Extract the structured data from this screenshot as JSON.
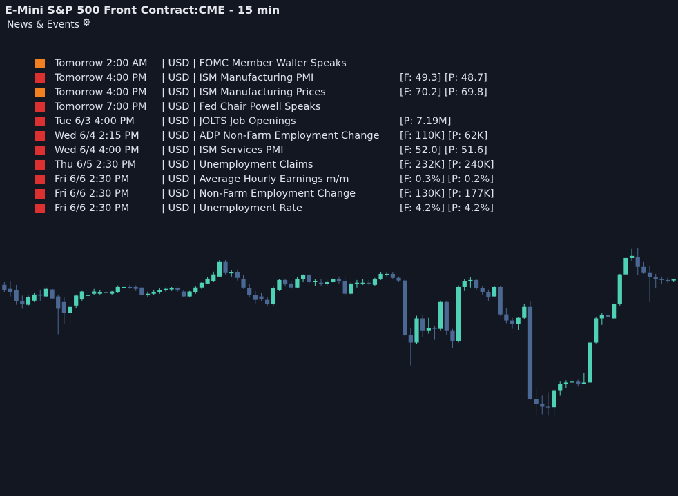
{
  "header": {
    "title": "E-Mini S&P 500 Front Contract:CME - 15 min",
    "subtitle": "News & Events",
    "settings_icon": "gear-icon"
  },
  "colors": {
    "background": "#131722",
    "bull": "#4ed1b4",
    "bear": "#4b6894",
    "impact_high": "#dd3131",
    "impact_medium": "#f38020"
  },
  "events": [
    {
      "color": "#f38020",
      "time": "Tomorrow 2:00 AM",
      "rest": "| USD | FOMC Member Waller Speaks",
      "vals": ""
    },
    {
      "color": "#dd3131",
      "time": "Tomorrow 4:00 PM",
      "rest": "| USD | ISM Manufacturing PMI",
      "vals": "[F: 49.3] [P: 48.7]"
    },
    {
      "color": "#f38020",
      "time": "Tomorrow 4:00 PM",
      "rest": "| USD | ISM Manufacturing Prices",
      "vals": "[F: 70.2] [P: 69.8]"
    },
    {
      "color": "#dd3131",
      "time": "Tomorrow 7:00 PM",
      "rest": "| USD | Fed Chair Powell Speaks",
      "vals": ""
    },
    {
      "color": "#dd3131",
      "time": "Tue 6/3 4:00 PM",
      "rest": "| USD | JOLTS Job Openings",
      "vals": "[P: 7.19M]"
    },
    {
      "color": "#dd3131",
      "time": "Wed 6/4 2:15 PM",
      "rest": "| USD | ADP Non-Farm Employment Change",
      "vals": "[F: 110K] [P: 62K]"
    },
    {
      "color": "#dd3131",
      "time": "Wed 6/4 4:00 PM",
      "rest": "| USD | ISM Services PMI",
      "vals": "[F: 52.0] [P: 51.6]"
    },
    {
      "color": "#dd3131",
      "time": "Thu 6/5 2:30 PM",
      "rest": "| USD | Unemployment Claims",
      "vals": "[F: 232K] [P: 240K]"
    },
    {
      "color": "#dd3131",
      "time": "Fri 6/6 2:30 PM",
      "rest": "| USD | Average Hourly Earnings m/m",
      "vals": "[F: 0.3%] [P: 0.2%]"
    },
    {
      "color": "#dd3131",
      "time": "Fri 6/6 2:30 PM",
      "rest": "| USD | Non-Farm Employment Change",
      "vals": "[F: 130K] [P: 177K]"
    },
    {
      "color": "#dd3131",
      "time": "Fri 6/6 2:30 PM",
      "rest": "| USD | Unemployment Rate",
      "vals": "[F: 4.2%] [P: 4.2%]"
    }
  ],
  "chart_data": {
    "type": "candlestick",
    "title": "E-Mini S&P 500 Front Contract:CME - 15 min",
    "interval": "15 min",
    "x_axis": "none",
    "y_axis": "none",
    "ylim": [
      0,
      100
    ],
    "candles": [
      {
        "o": 78.7,
        "h": 79.7,
        "l": 75.9,
        "c": 76.7
      },
      {
        "o": 77.2,
        "h": 80.0,
        "l": 74.4,
        "c": 75.9
      },
      {
        "o": 76.7,
        "h": 78.7,
        "l": 71.3,
        "c": 72.6
      },
      {
        "o": 72.6,
        "h": 74.7,
        "l": 69.8,
        "c": 71.5
      },
      {
        "o": 71.3,
        "h": 74.7,
        "l": 70.8,
        "c": 74.1
      },
      {
        "o": 72.8,
        "h": 75.6,
        "l": 72.3,
        "c": 75.1
      },
      {
        "o": 75.1,
        "h": 76.7,
        "l": 72.8,
        "c": 74.7
      },
      {
        "o": 74.4,
        "h": 77.7,
        "l": 74.1,
        "c": 77.2
      },
      {
        "o": 77.0,
        "h": 77.9,
        "l": 73.1,
        "c": 73.6
      },
      {
        "o": 74.4,
        "h": 75.1,
        "l": 60.3,
        "c": 69.8
      },
      {
        "o": 72.3,
        "h": 74.1,
        "l": 64.1,
        "c": 68.2
      },
      {
        "o": 68.2,
        "h": 71.8,
        "l": 63.6,
        "c": 70.5
      },
      {
        "o": 71.0,
        "h": 75.1,
        "l": 70.0,
        "c": 74.7
      },
      {
        "o": 73.3,
        "h": 76.4,
        "l": 72.8,
        "c": 76.2
      },
      {
        "o": 74.9,
        "h": 76.7,
        "l": 73.3,
        "c": 74.9
      },
      {
        "o": 75.4,
        "h": 77.2,
        "l": 74.9,
        "c": 76.2
      },
      {
        "o": 75.4,
        "h": 76.7,
        "l": 75.1,
        "c": 75.9
      },
      {
        "o": 75.9,
        "h": 76.4,
        "l": 75.1,
        "c": 75.6
      },
      {
        "o": 75.4,
        "h": 76.4,
        "l": 74.9,
        "c": 76.2
      },
      {
        "o": 75.9,
        "h": 78.5,
        "l": 75.6,
        "c": 77.9
      },
      {
        "o": 77.9,
        "h": 78.5,
        "l": 77.2,
        "c": 77.9
      },
      {
        "o": 77.9,
        "h": 78.7,
        "l": 77.2,
        "c": 77.7
      },
      {
        "o": 77.9,
        "h": 78.5,
        "l": 76.4,
        "c": 77.2
      },
      {
        "o": 77.7,
        "h": 77.9,
        "l": 74.4,
        "c": 74.9
      },
      {
        "o": 74.9,
        "h": 76.2,
        "l": 74.1,
        "c": 75.4
      },
      {
        "o": 75.4,
        "h": 76.7,
        "l": 74.9,
        "c": 75.9
      },
      {
        "o": 75.9,
        "h": 77.4,
        "l": 75.4,
        "c": 76.7
      },
      {
        "o": 76.7,
        "h": 77.7,
        "l": 76.2,
        "c": 77.2
      },
      {
        "o": 77.0,
        "h": 77.9,
        "l": 76.4,
        "c": 77.4
      },
      {
        "o": 77.4,
        "h": 77.7,
        "l": 76.2,
        "c": 76.9
      },
      {
        "o": 76.2,
        "h": 76.9,
        "l": 74.1,
        "c": 74.4
      },
      {
        "o": 74.4,
        "h": 76.4,
        "l": 74.1,
        "c": 76.2
      },
      {
        "o": 75.9,
        "h": 78.2,
        "l": 75.4,
        "c": 77.7
      },
      {
        "o": 77.7,
        "h": 79.7,
        "l": 77.2,
        "c": 79.5
      },
      {
        "o": 79.2,
        "h": 81.5,
        "l": 79.0,
        "c": 81.0
      },
      {
        "o": 80.0,
        "h": 83.6,
        "l": 79.7,
        "c": 82.6
      },
      {
        "o": 81.8,
        "h": 87.9,
        "l": 81.5,
        "c": 87.2
      },
      {
        "o": 87.2,
        "h": 87.9,
        "l": 82.6,
        "c": 83.1
      },
      {
        "o": 83.1,
        "h": 84.1,
        "l": 81.8,
        "c": 83.3
      },
      {
        "o": 83.3,
        "h": 84.4,
        "l": 80.3,
        "c": 81.3
      },
      {
        "o": 80.8,
        "h": 82.3,
        "l": 77.2,
        "c": 77.7
      },
      {
        "o": 77.4,
        "h": 79.0,
        "l": 74.1,
        "c": 74.9
      },
      {
        "o": 74.9,
        "h": 76.4,
        "l": 71.8,
        "c": 73.1
      },
      {
        "o": 74.4,
        "h": 75.6,
        "l": 72.8,
        "c": 73.3
      },
      {
        "o": 73.1,
        "h": 74.1,
        "l": 71.0,
        "c": 71.5
      },
      {
        "o": 71.5,
        "h": 78.2,
        "l": 71.0,
        "c": 77.4
      },
      {
        "o": 76.7,
        "h": 80.8,
        "l": 76.4,
        "c": 80.5
      },
      {
        "o": 80.5,
        "h": 81.0,
        "l": 78.2,
        "c": 79.0
      },
      {
        "o": 79.2,
        "h": 80.0,
        "l": 77.2,
        "c": 77.7
      },
      {
        "o": 77.7,
        "h": 81.5,
        "l": 77.4,
        "c": 80.8
      },
      {
        "o": 80.8,
        "h": 82.6,
        "l": 79.7,
        "c": 82.3
      },
      {
        "o": 82.3,
        "h": 82.8,
        "l": 79.2,
        "c": 79.7
      },
      {
        "o": 79.7,
        "h": 80.8,
        "l": 78.2,
        "c": 80.0
      },
      {
        "o": 79.5,
        "h": 81.0,
        "l": 78.2,
        "c": 79.0
      },
      {
        "o": 79.0,
        "h": 80.3,
        "l": 78.5,
        "c": 79.7
      },
      {
        "o": 79.7,
        "h": 81.3,
        "l": 79.5,
        "c": 80.8
      },
      {
        "o": 80.8,
        "h": 81.8,
        "l": 79.2,
        "c": 80.0
      },
      {
        "o": 80.0,
        "h": 81.5,
        "l": 74.6,
        "c": 75.4
      },
      {
        "o": 75.4,
        "h": 79.7,
        "l": 74.9,
        "c": 79.2
      },
      {
        "o": 79.2,
        "h": 80.5,
        "l": 77.7,
        "c": 79.5
      },
      {
        "o": 79.2,
        "h": 80.8,
        "l": 78.7,
        "c": 79.5
      },
      {
        "o": 79.5,
        "h": 80.5,
        "l": 78.5,
        "c": 79.2
      },
      {
        "o": 78.7,
        "h": 81.3,
        "l": 78.2,
        "c": 80.8
      },
      {
        "o": 80.8,
        "h": 83.3,
        "l": 80.5,
        "c": 82.8
      },
      {
        "o": 82.8,
        "h": 83.6,
        "l": 81.5,
        "c": 82.8
      },
      {
        "o": 82.8,
        "h": 83.3,
        "l": 80.8,
        "c": 81.3
      },
      {
        "o": 81.3,
        "h": 81.8,
        "l": 79.7,
        "c": 80.3
      },
      {
        "o": 80.3,
        "h": 80.8,
        "l": 59.5,
        "c": 60.0
      },
      {
        "o": 60.0,
        "h": 62.6,
        "l": 48.7,
        "c": 57.2
      },
      {
        "o": 57.2,
        "h": 67.2,
        "l": 56.7,
        "c": 66.2
      },
      {
        "o": 66.2,
        "h": 67.7,
        "l": 59.2,
        "c": 61.5
      },
      {
        "o": 61.5,
        "h": 66.4,
        "l": 60.5,
        "c": 62.6
      },
      {
        "o": 62.6,
        "h": 63.3,
        "l": 58.2,
        "c": 62.3
      },
      {
        "o": 62.3,
        "h": 72.8,
        "l": 61.5,
        "c": 72.3
      },
      {
        "o": 72.3,
        "h": 72.8,
        "l": 60.0,
        "c": 61.5
      },
      {
        "o": 61.5,
        "h": 62.3,
        "l": 55.1,
        "c": 57.7
      },
      {
        "o": 57.7,
        "h": 78.5,
        "l": 57.2,
        "c": 77.9
      },
      {
        "o": 77.9,
        "h": 80.8,
        "l": 76.4,
        "c": 80.0
      },
      {
        "o": 80.0,
        "h": 81.5,
        "l": 77.7,
        "c": 80.5
      },
      {
        "o": 80.5,
        "h": 80.8,
        "l": 76.9,
        "c": 77.4
      },
      {
        "o": 77.4,
        "h": 78.2,
        "l": 74.9,
        "c": 75.9
      },
      {
        "o": 75.9,
        "h": 76.9,
        "l": 72.8,
        "c": 74.1
      },
      {
        "o": 74.4,
        "h": 78.2,
        "l": 74.1,
        "c": 77.9
      },
      {
        "o": 77.9,
        "h": 78.2,
        "l": 67.2,
        "c": 67.7
      },
      {
        "o": 67.7,
        "h": 70.0,
        "l": 64.4,
        "c": 65.4
      },
      {
        "o": 65.4,
        "h": 66.4,
        "l": 62.3,
        "c": 64.1
      },
      {
        "o": 64.1,
        "h": 66.7,
        "l": 61.8,
        "c": 66.4
      },
      {
        "o": 66.4,
        "h": 71.5,
        "l": 65.9,
        "c": 70.5
      },
      {
        "o": 70.5,
        "h": 72.6,
        "l": 35.9,
        "c": 36.2
      },
      {
        "o": 36.2,
        "h": 40.3,
        "l": 30.0,
        "c": 34.4
      },
      {
        "o": 34.4,
        "h": 37.4,
        "l": 30.5,
        "c": 33.3
      },
      {
        "o": 33.3,
        "h": 38.7,
        "l": 30.0,
        "c": 33.1
      },
      {
        "o": 33.1,
        "h": 40.0,
        "l": 30.3,
        "c": 39.2
      },
      {
        "o": 39.2,
        "h": 42.6,
        "l": 37.4,
        "c": 41.8
      },
      {
        "o": 41.8,
        "h": 43.1,
        "l": 40.3,
        "c": 42.3
      },
      {
        "o": 42.3,
        "h": 43.6,
        "l": 41.3,
        "c": 42.6
      },
      {
        "o": 42.6,
        "h": 43.3,
        "l": 40.8,
        "c": 41.8
      },
      {
        "o": 41.8,
        "h": 45.9,
        "l": 41.8,
        "c": 42.3
      },
      {
        "o": 42.3,
        "h": 57.4,
        "l": 42.1,
        "c": 57.2
      },
      {
        "o": 57.2,
        "h": 66.7,
        "l": 56.9,
        "c": 66.2
      },
      {
        "o": 66.2,
        "h": 68.2,
        "l": 63.8,
        "c": 67.4
      },
      {
        "o": 67.4,
        "h": 67.9,
        "l": 65.1,
        "c": 66.7
      },
      {
        "o": 66.2,
        "h": 71.8,
        "l": 65.9,
        "c": 71.5
      },
      {
        "o": 71.5,
        "h": 82.8,
        "l": 71.0,
        "c": 82.6
      },
      {
        "o": 82.6,
        "h": 89.2,
        "l": 82.3,
        "c": 88.7
      },
      {
        "o": 88.7,
        "h": 92.1,
        "l": 87.7,
        "c": 89.5
      },
      {
        "o": 89.2,
        "h": 92.3,
        "l": 82.3,
        "c": 85.4
      },
      {
        "o": 85.4,
        "h": 87.2,
        "l": 82.8,
        "c": 83.1
      },
      {
        "o": 83.1,
        "h": 85.9,
        "l": 72.3,
        "c": 81.5
      },
      {
        "o": 81.5,
        "h": 82.8,
        "l": 77.4,
        "c": 80.8
      },
      {
        "o": 80.8,
        "h": 81.8,
        "l": 79.2,
        "c": 80.5
      },
      {
        "o": 80.5,
        "h": 81.3,
        "l": 79.5,
        "c": 80.3
      },
      {
        "o": 80.3,
        "h": 81.0,
        "l": 79.7,
        "c": 80.8
      }
    ]
  }
}
